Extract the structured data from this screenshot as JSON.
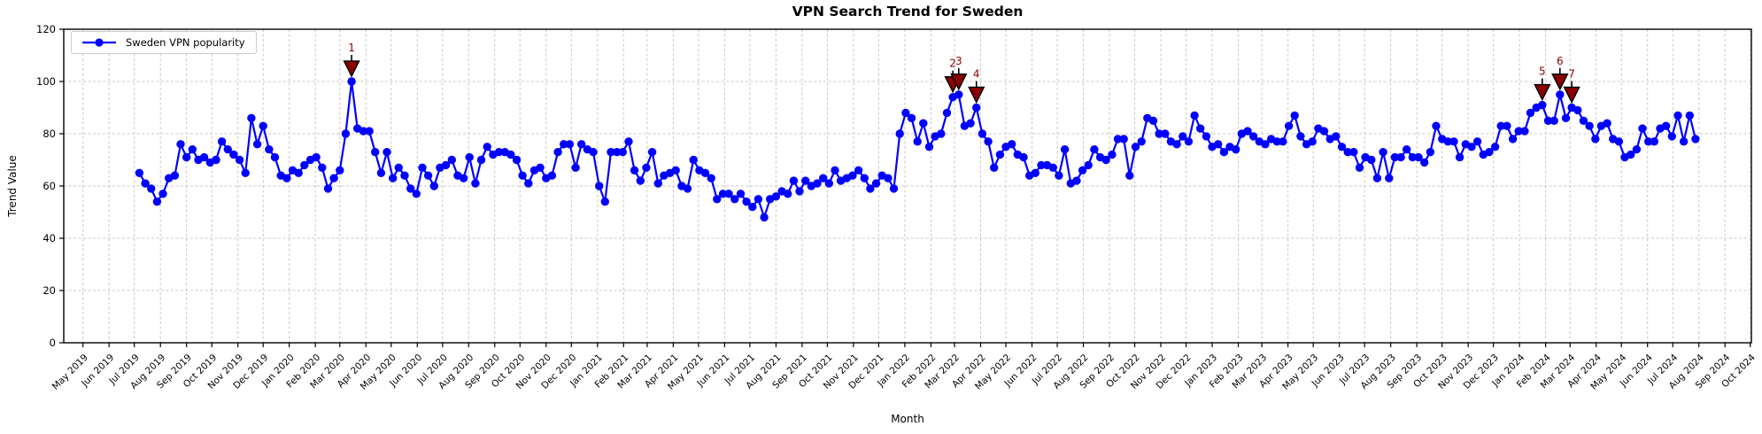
{
  "chart_data": {
    "type": "line",
    "title": "VPN Search Trend for Sweden",
    "xlabel": "Month",
    "ylabel": "Trend Value",
    "ylim": [
      0,
      120
    ],
    "yticks": [
      0,
      20,
      40,
      60,
      80,
      100,
      120
    ],
    "grid": true,
    "legend": {
      "position": "upper-left",
      "entries": [
        "Sweden VPN popularity"
      ]
    },
    "x_axis": {
      "start_month": "May 2019",
      "end_month": "Oct 2024",
      "tick_interval": "month",
      "tick_labels": [
        "May 2019",
        "Jun 2019",
        "Jul 2019",
        "Aug 2019",
        "Sep 2019",
        "Oct 2019",
        "Nov 2019",
        "Dec 2019",
        "Jan 2020",
        "Feb 2020",
        "Mar 2020",
        "Apr 2020",
        "May 2020",
        "Jun 2020",
        "Jul 2020",
        "Aug 2020",
        "Sep 2020",
        "Oct 2020",
        "Nov 2020",
        "Dec 2020",
        "Jan 2021",
        "Feb 2021",
        "Mar 2021",
        "Apr 2021",
        "May 2021",
        "Jun 2021",
        "Jul 2021",
        "Aug 2021",
        "Sep 2021",
        "Oct 2021",
        "Nov 2021",
        "Dec 2021",
        "Jan 2022",
        "Feb 2022",
        "Mar 2022",
        "Apr 2022",
        "May 2022",
        "Jun 2022",
        "Jul 2022",
        "Aug 2022",
        "Sep 2022",
        "Oct 2022",
        "Nov 2022",
        "Dec 2022",
        "Jan 2023",
        "Feb 2023",
        "Mar 2023",
        "Apr 2023",
        "May 2023",
        "Jun 2023",
        "Jul 2023",
        "Aug 2023",
        "Sep 2023",
        "Oct 2023",
        "Nov 2023",
        "Dec 2023",
        "Jan 2024",
        "Feb 2024",
        "Mar 2024",
        "Apr 2024",
        "May 2024",
        "Jun 2024",
        "Jul 2024",
        "Aug 2024",
        "Sep 2024",
        "Oct 2024"
      ]
    },
    "series": [
      {
        "name": "Sweden VPN popularity",
        "color": "#0000ff",
        "marker": "circle",
        "start_date": "2019-07-07",
        "interval_days": 7,
        "values": [
          65,
          61,
          59,
          54,
          57,
          63,
          64,
          76,
          71,
          74,
          70,
          71,
          69,
          70,
          77,
          74,
          72,
          70,
          65,
          86,
          76,
          83,
          74,
          71,
          64,
          63,
          66,
          65,
          68,
          70,
          71,
          67,
          59,
          63,
          66,
          80,
          100,
          82,
          81,
          81,
          73,
          65,
          73,
          63,
          67,
          64,
          59,
          57,
          67,
          64,
          60,
          67,
          68,
          70,
          64,
          63,
          71,
          61,
          70,
          75,
          72,
          73,
          73,
          72,
          70,
          64,
          61,
          66,
          67,
          63,
          64,
          73,
          76,
          76,
          67,
          76,
          74,
          73,
          60,
          54,
          73,
          73,
          73,
          77,
          66,
          62,
          67,
          73,
          61,
          64,
          65,
          66,
          60,
          59,
          70,
          66,
          65,
          63,
          55,
          57,
          57,
          55,
          57,
          54,
          52,
          55,
          48,
          55,
          56,
          58,
          57,
          62,
          58,
          62,
          60,
          61,
          63,
          61,
          66,
          62,
          63,
          64,
          66,
          63,
          59,
          61,
          64,
          63,
          59,
          80,
          88,
          86,
          77,
          84,
          75,
          79,
          80,
          88,
          94,
          95,
          83,
          84,
          90,
          80,
          77,
          67,
          72,
          75,
          76,
          72,
          71,
          64,
          65,
          68,
          68,
          67,
          64,
          74,
          61,
          62,
          66,
          68,
          74,
          71,
          70,
          72,
          78,
          78,
          64,
          75,
          77,
          86,
          85,
          80,
          80,
          77,
          76,
          79,
          77,
          87,
          82,
          79,
          75,
          76,
          73,
          75,
          74,
          80,
          81,
          79,
          77,
          76,
          78,
          77,
          77,
          83,
          87,
          79,
          76,
          77,
          82,
          81,
          78,
          79,
          75,
          73,
          73,
          67,
          71,
          70,
          63,
          73,
          63,
          71,
          71,
          74,
          71,
          71,
          69,
          73,
          83,
          78,
          77,
          77,
          71,
          76,
          75,
          77,
          72,
          73,
          75,
          83,
          83,
          78,
          81,
          81,
          88,
          90,
          91,
          85,
          85,
          95,
          86,
          90,
          89,
          85,
          83,
          78,
          83,
          84,
          78,
          77,
          71,
          72,
          74,
          82,
          77,
          77,
          82,
          83,
          79,
          87,
          77,
          87,
          78
        ]
      }
    ],
    "annotations": [
      {
        "label": "1",
        "index": 36,
        "value": 100
      },
      {
        "label": "2",
        "index": 138,
        "value": 94
      },
      {
        "label": "3",
        "index": 139,
        "value": 95
      },
      {
        "label": "4",
        "index": 142,
        "value": 90
      },
      {
        "label": "5",
        "index": 238,
        "value": 91
      },
      {
        "label": "6",
        "index": 241,
        "value": 95
      },
      {
        "label": "7",
        "index": 243,
        "value": 90
      }
    ],
    "colors": {
      "line": "#0000ff",
      "marker": "#0000ff",
      "annotation_marker_fill": "#8b0000",
      "annotation_marker_edge": "#000000",
      "annotation_text": "#8b0000",
      "grid": "#c8c8c8",
      "axis": "#000000",
      "background": "#ffffff"
    }
  }
}
